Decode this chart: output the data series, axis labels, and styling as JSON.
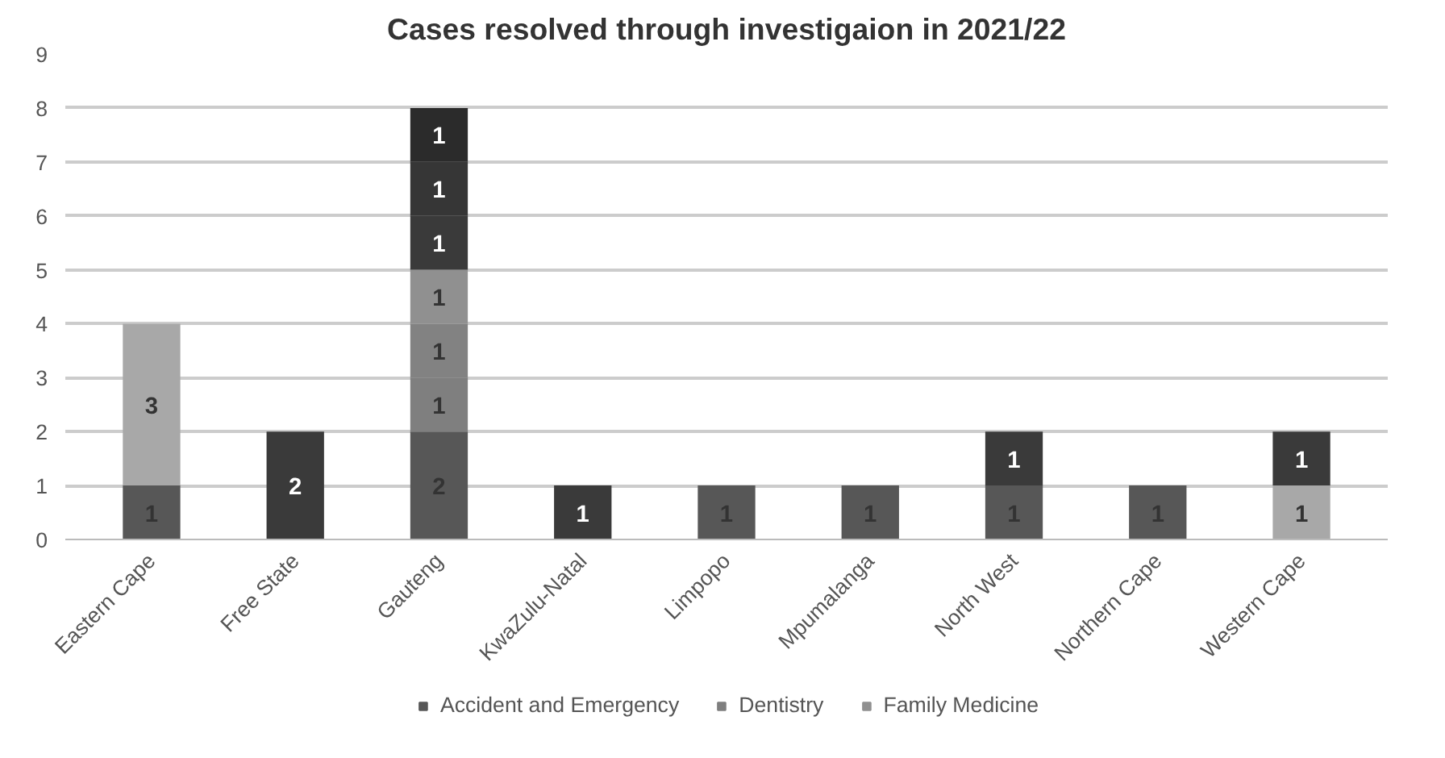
{
  "chart_data": {
    "type": "bar",
    "title": "Cases resolved through investigaion in 2021/22",
    "categories": [
      "Eastern Cape",
      "Free State",
      "Gauteng",
      "KwaZulu-Natal",
      "Limpopo",
      "Mpumalanga",
      "North West",
      "Northern Cape",
      "Western Cape"
    ],
    "stacked": true,
    "data_labels": true,
    "grid": "y",
    "legend": "bottom",
    "ylim": [
      0,
      9
    ],
    "yticks": [
      0,
      1,
      2,
      3,
      4,
      5,
      6,
      7,
      8,
      9
    ],
    "series": [
      {
        "name": "Accident and Emergency",
        "color": "#575757",
        "values": [
          1,
          null,
          2,
          null,
          1,
          1,
          1,
          1,
          null
        ]
      },
      {
        "name": "Dentistry",
        "color": "#7f7f7f",
        "values": [
          null,
          null,
          1,
          null,
          null,
          null,
          null,
          null,
          null
        ]
      },
      {
        "color": "#828282",
        "values": [
          null,
          null,
          1,
          null,
          null,
          null,
          null,
          null,
          null
        ]
      },
      {
        "name": "Family Medicine",
        "color": "#909090",
        "values": [
          null,
          null,
          1,
          null,
          null,
          null,
          null,
          null,
          null
        ]
      },
      {
        "color": "#a8a8a8",
        "values": [
          3,
          null,
          null,
          null,
          null,
          null,
          null,
          null,
          1
        ]
      },
      {
        "color": "#3a3a3a",
        "values": [
          null,
          2,
          1,
          1,
          null,
          null,
          1,
          null,
          1
        ]
      },
      {
        "color": "#363636",
        "values": [
          null,
          null,
          1,
          null,
          null,
          null,
          null,
          null,
          null
        ]
      },
      {
        "color": "#2b2b2b",
        "values": [
          null,
          null,
          1,
          null,
          null,
          null,
          null,
          null,
          null
        ]
      }
    ]
  }
}
